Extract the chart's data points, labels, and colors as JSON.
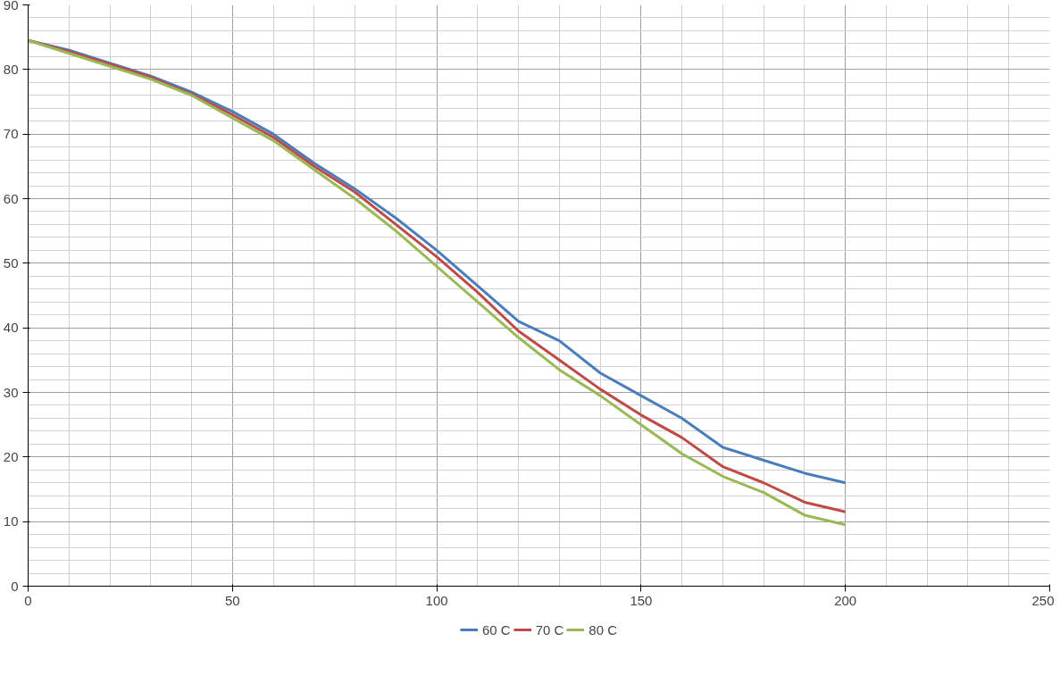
{
  "chart_data": {
    "type": "line",
    "x": [
      0,
      10,
      20,
      30,
      40,
      50,
      60,
      70,
      80,
      90,
      100,
      110,
      120,
      130,
      140,
      150,
      160,
      170,
      180,
      190,
      200
    ],
    "series": [
      {
        "name": "60 C",
        "color": "#4a7ebb",
        "values": [
          84.5,
          83,
          81,
          79,
          76.5,
          73.5,
          70,
          65.5,
          61.5,
          57,
          52,
          46.5,
          41,
          38,
          33,
          29.5,
          26,
          21.5,
          19.5,
          17.5,
          16
        ]
      },
      {
        "name": "70 C",
        "color": "#be4b48",
        "values": [
          84.5,
          82.8,
          80.8,
          78.8,
          76.2,
          73,
          69.5,
          65,
          61,
          56,
          51,
          45.5,
          39.5,
          35,
          30.5,
          26.5,
          23,
          18.5,
          16,
          13,
          11.5
        ]
      },
      {
        "name": "80 C",
        "color": "#98b954",
        "values": [
          84.5,
          82.5,
          80.5,
          78.5,
          76,
          72.5,
          69,
          64.5,
          60,
          55,
          49.5,
          44,
          38.5,
          33.5,
          29.5,
          25,
          20.5,
          17,
          14.5,
          11,
          9.5
        ]
      }
    ],
    "xlim": [
      0,
      250
    ],
    "xticks": [
      0,
      50,
      100,
      150,
      200,
      250
    ],
    "ylim": [
      0,
      90
    ],
    "yticks": [
      0,
      10,
      20,
      30,
      40,
      50,
      60,
      70,
      80,
      90
    ],
    "grid": true,
    "legend": "bottom",
    "marker": "none",
    "line_style": "solid"
  }
}
